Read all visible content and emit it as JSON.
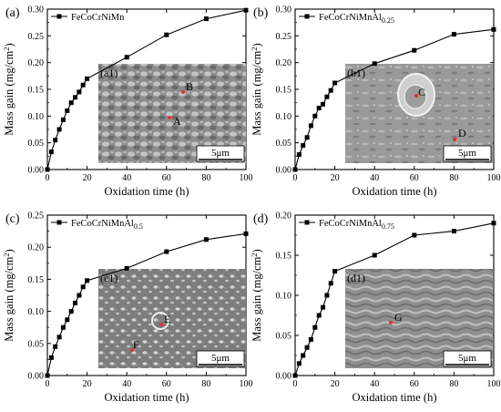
{
  "chart_data": [
    {
      "type": "line",
      "panel_label": "(a)",
      "inset_label": "(a1)",
      "legend": "FeCoCrNiMn",
      "legend_sub": "",
      "xlabel": "Oxidation time (h)",
      "ylabel": "Mass gain (mg/cm",
      "ylabel_sup": "2",
      "ylabel_close": ")",
      "xlim": [
        0,
        100
      ],
      "ylim": [
        0,
        0.3
      ],
      "xticks": [
        "0",
        "20",
        "40",
        "60",
        "80",
        "100"
      ],
      "yticks": [
        "0.00",
        "0.05",
        "0.10",
        "0.15",
        "0.20",
        "0.25",
        "0.30"
      ],
      "x": [
        0,
        2,
        4,
        6,
        8,
        10,
        12,
        14,
        16,
        18,
        20,
        40,
        60,
        80,
        100
      ],
      "y": [
        0.0,
        0.033,
        0.055,
        0.075,
        0.093,
        0.11,
        0.125,
        0.135,
        0.145,
        0.158,
        0.17,
        0.21,
        0.252,
        0.282,
        0.298
      ],
      "scale_bar": "5μm",
      "points": [
        "A",
        "B"
      ],
      "grid": false,
      "legend_position": "top-left"
    },
    {
      "type": "line",
      "panel_label": "(b)",
      "inset_label": "(b1)",
      "legend": "FeCoCrNiMnAl",
      "legend_sub": "0.25",
      "xlabel": "Oxidation time (h)",
      "ylabel": "Mass gain (mg/cm",
      "ylabel_sup": "2",
      "ylabel_close": ")",
      "xlim": [
        0,
        100
      ],
      "ylim": [
        0,
        0.3
      ],
      "xticks": [
        "0",
        "20",
        "40",
        "60",
        "80",
        "100"
      ],
      "yticks": [
        "0.00",
        "0.05",
        "0.10",
        "0.15",
        "0.20",
        "0.25",
        "0.30"
      ],
      "x": [
        0,
        2,
        4,
        6,
        8,
        10,
        12,
        14,
        16,
        18,
        20,
        40,
        60,
        80,
        100
      ],
      "y": [
        0.0,
        0.028,
        0.045,
        0.06,
        0.082,
        0.1,
        0.115,
        0.122,
        0.136,
        0.148,
        0.162,
        0.198,
        0.223,
        0.253,
        0.262
      ],
      "scale_bar": "5μm",
      "points": [
        "C",
        "D"
      ],
      "grid": false,
      "legend_position": "top-left"
    },
    {
      "type": "line",
      "panel_label": "(c)",
      "inset_label": "(c1)",
      "legend": "FeCoCrNiMnAl",
      "legend_sub": "0.5",
      "xlabel": "Oxidation time (h)",
      "ylabel": "Mass gain (mg/cm",
      "ylabel_sup": "2",
      "ylabel_close": ")",
      "xlim": [
        0,
        100
      ],
      "ylim": [
        0,
        0.25
      ],
      "xticks": [
        "0",
        "20",
        "40",
        "60",
        "80",
        "100"
      ],
      "yticks": [
        "0.00",
        "0.05",
        "0.10",
        "0.15",
        "0.20",
        "0.25"
      ],
      "x": [
        0,
        2,
        4,
        6,
        8,
        10,
        12,
        14,
        16,
        18,
        20,
        40,
        60,
        80,
        100
      ],
      "y": [
        0.0,
        0.028,
        0.045,
        0.06,
        0.075,
        0.087,
        0.1,
        0.113,
        0.125,
        0.138,
        0.148,
        0.167,
        0.193,
        0.212,
        0.221
      ],
      "scale_bar": "5μm",
      "points": [
        "E",
        "F"
      ],
      "grid": false,
      "legend_position": "top-left"
    },
    {
      "type": "line",
      "panel_label": "(d)",
      "inset_label": "(d1)",
      "legend": "FeCoCrNiMnAl",
      "legend_sub": "0.75",
      "xlabel": "Oxidation time (h)",
      "ylabel": "Mass gain (mg/cm",
      "ylabel_sup": "2",
      "ylabel_close": ")",
      "xlim": [
        0,
        100
      ],
      "ylim": [
        0,
        0.2
      ],
      "xticks": [
        "0",
        "20",
        "40",
        "60",
        "80",
        "100"
      ],
      "yticks": [
        "0.00",
        "0.05",
        "0.10",
        "0.15",
        "0.20"
      ],
      "x": [
        0,
        2,
        4,
        6,
        8,
        10,
        12,
        14,
        16,
        18,
        20,
        40,
        60,
        80,
        100
      ],
      "y": [
        0.0,
        0.015,
        0.025,
        0.035,
        0.045,
        0.06,
        0.075,
        0.085,
        0.1,
        0.115,
        0.13,
        0.15,
        0.175,
        0.18,
        0.19
      ],
      "scale_bar": "5μm",
      "points": [
        "G"
      ],
      "grid": false,
      "legend_position": "top-left"
    }
  ]
}
